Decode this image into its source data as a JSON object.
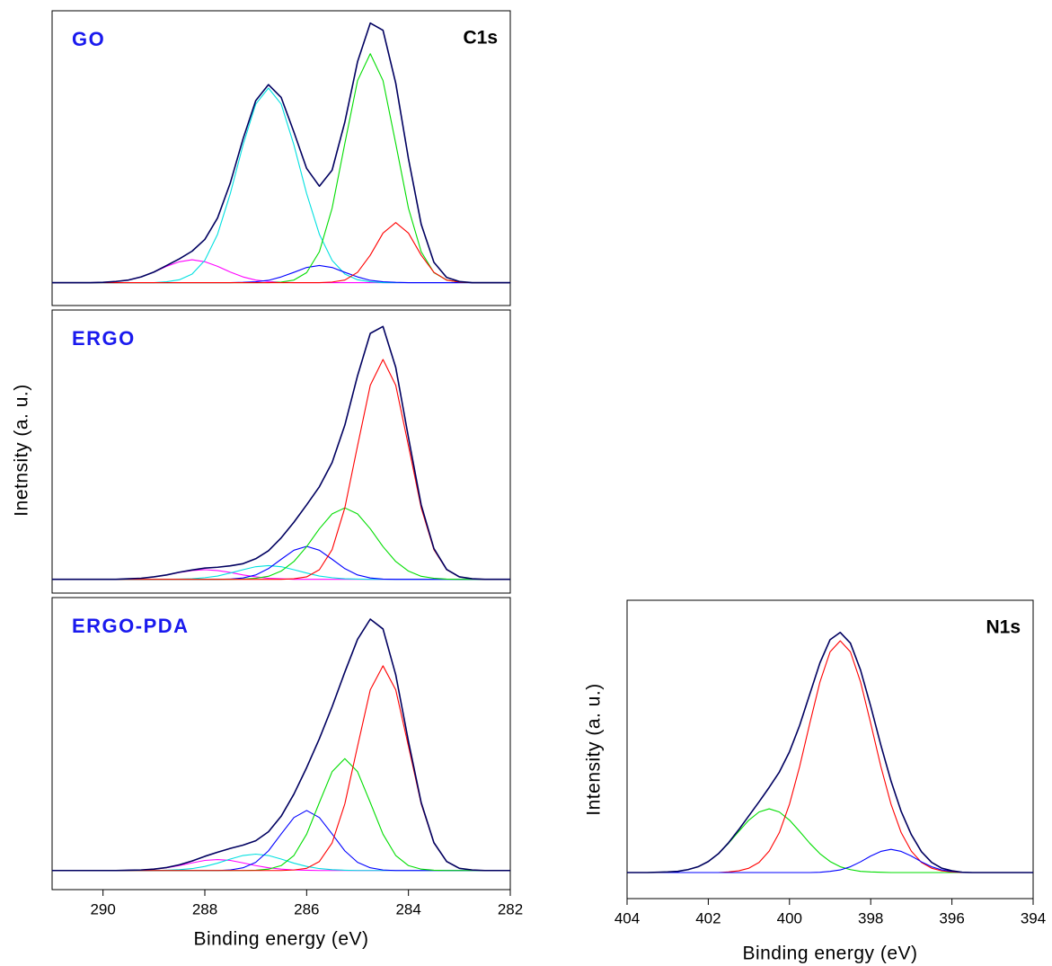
{
  "chart_data": [
    {
      "type": "line",
      "title": "GO",
      "annotation": "C1s",
      "x": [
        291,
        290.75,
        290.5,
        290.25,
        290,
        289.75,
        289.5,
        289.25,
        289,
        288.75,
        288.5,
        288.25,
        288,
        287.75,
        287.5,
        287.25,
        287,
        286.75,
        286.5,
        286.25,
        286,
        285.75,
        285.5,
        285.25,
        285,
        284.75,
        284.5,
        284.25,
        284,
        283.75,
        283.5,
        283.25,
        283,
        282.75,
        282.5,
        282.25,
        282
      ],
      "xlim": [
        291,
        282
      ],
      "ylim": [
        -8,
        95
      ],
      "series": [
        {
          "color": "#ff00ff",
          "values": [
            0,
            0,
            0,
            0,
            0.1,
            0.4,
            0.9,
            2,
            3.7,
            5.7,
            7.3,
            8,
            7.3,
            5.7,
            3.7,
            2,
            0.9,
            0.4,
            0.1,
            0,
            0,
            0,
            0,
            0,
            0,
            0,
            0,
            0,
            0,
            0,
            0,
            0,
            0,
            0,
            0,
            0,
            0
          ]
        },
        {
          "color": "#00e0e0",
          "values": [
            0,
            0,
            0,
            0,
            0,
            0,
            0,
            0,
            0,
            0.3,
            1,
            3,
            7.8,
            16.9,
            31.1,
            48.1,
            62.4,
            68,
            62.4,
            48.1,
            31.1,
            16.9,
            7.8,
            3,
            1,
            0.3,
            0,
            0,
            0,
            0,
            0,
            0,
            0,
            0,
            0,
            0,
            0
          ]
        },
        {
          "color": "#0000ff",
          "values": [
            0,
            0,
            0,
            0,
            0,
            0,
            0,
            0,
            0,
            0,
            0,
            0,
            0,
            0,
            0,
            0.1,
            0.3,
            0.8,
            2,
            3.6,
            5.3,
            6,
            5.3,
            3.6,
            2,
            0.8,
            0.3,
            0.1,
            0,
            0,
            0,
            0,
            0,
            0,
            0,
            0,
            0
          ]
        },
        {
          "color": "#00dd00",
          "values": [
            0,
            0,
            0,
            0,
            0,
            0,
            0,
            0,
            0,
            0,
            0,
            0,
            0,
            0,
            0,
            0,
            0,
            0,
            0.2,
            0.9,
            3.5,
            10.8,
            26,
            48.6,
            70.6,
            80,
            70.6,
            48.6,
            26,
            10.8,
            3.5,
            0.9,
            0.2,
            0,
            0,
            0,
            0
          ]
        },
        {
          "color": "#ff0000",
          "values": [
            0,
            0,
            0,
            0,
            0,
            0,
            0,
            0,
            0,
            0,
            0,
            0,
            0,
            0,
            0,
            0,
            0,
            0,
            0,
            0,
            0,
            0,
            0.2,
            0.9,
            3.6,
            9.6,
            17.3,
            21,
            17.3,
            9.6,
            3.6,
            0.9,
            0.2,
            0,
            0,
            0,
            0
          ]
        },
        {
          "color": "#000060",
          "values": [
            0,
            0,
            0,
            0,
            0.1,
            0.4,
            0.9,
            2,
            3.7,
            6,
            8.3,
            11,
            15.1,
            22.6,
            34.8,
            50.2,
            63.6,
            69.2,
            64.7,
            52.6,
            39.9,
            33.7,
            39.3,
            56.1,
            77.2,
            90.7,
            88.2,
            69.7,
            43.3,
            20.4,
            7.1,
            1.8,
            0.4,
            0,
            0,
            0,
            0
          ]
        }
      ]
    },
    {
      "type": "line",
      "title": "ERGO",
      "ylabel": "Inetnsity (a. u.)",
      "x": [
        291,
        290.75,
        290.5,
        290.25,
        290,
        289.75,
        289.5,
        289.25,
        289,
        288.75,
        288.5,
        288.25,
        288,
        287.75,
        287.5,
        287.25,
        287,
        286.75,
        286.5,
        286.25,
        286,
        285.75,
        285.5,
        285.25,
        285,
        284.75,
        284.5,
        284.25,
        284,
        283.75,
        283.5,
        283.25,
        283,
        282.75,
        282.5,
        282.25,
        282
      ],
      "xlim": [
        291,
        282
      ],
      "ylim": [
        -5,
        98
      ],
      "series": [
        {
          "color": "#ff00ff",
          "values": [
            0,
            0,
            0,
            0,
            0,
            0,
            0.2,
            0.4,
            0.9,
            1.6,
            2.5,
            3.2,
            3.5,
            3.2,
            2.5,
            1.6,
            0.9,
            0.4,
            0.2,
            0,
            0,
            0,
            0,
            0,
            0,
            0,
            0,
            0,
            0,
            0,
            0,
            0,
            0,
            0,
            0,
            0,
            0
          ]
        },
        {
          "color": "#00e0e0",
          "values": [
            0,
            0,
            0,
            0,
            0,
            0,
            0,
            0,
            0,
            0,
            0.1,
            0.2,
            0.6,
            1.2,
            2.3,
            3.5,
            4.6,
            5,
            4.6,
            3.5,
            2.3,
            1.2,
            0.6,
            0.2,
            0.1,
            0,
            0,
            0,
            0,
            0,
            0,
            0,
            0,
            0,
            0,
            0,
            0
          ]
        },
        {
          "color": "#0000ff",
          "values": [
            0,
            0,
            0,
            0,
            0,
            0,
            0,
            0,
            0,
            0,
            0,
            0,
            0,
            0,
            0.1,
            0.5,
            1.6,
            3.9,
            7.3,
            10.6,
            12,
            10.6,
            7.3,
            3.9,
            1.6,
            0.5,
            0.1,
            0,
            0,
            0,
            0,
            0,
            0,
            0,
            0,
            0,
            0
          ]
        },
        {
          "color": "#00dd00",
          "values": [
            0,
            0,
            0,
            0,
            0,
            0,
            0,
            0,
            0,
            0,
            0,
            0,
            0,
            0,
            0,
            0.1,
            0.4,
            1.1,
            3,
            6.5,
            11.9,
            18.4,
            23.8,
            26,
            23.8,
            18.4,
            11.9,
            6.5,
            3,
            1.1,
            0.4,
            0.1,
            0,
            0,
            0,
            0,
            0
          ]
        },
        {
          "color": "#ff0000",
          "values": [
            0,
            0,
            0,
            0,
            0,
            0,
            0,
            0,
            0,
            0,
            0,
            0,
            0,
            0,
            0,
            0,
            0,
            0,
            0,
            0.2,
            0.9,
            3.5,
            10.8,
            26,
            48.6,
            70.6,
            80,
            70.6,
            48.6,
            26,
            10.8,
            3.5,
            0.9,
            0.2,
            0,
            0,
            0
          ]
        },
        {
          "color": "#000060",
          "values": [
            0,
            0,
            0,
            0,
            0,
            0,
            0.2,
            0.4,
            0.9,
            1.6,
            2.6,
            3.4,
            4.1,
            4.4,
            4.9,
            5.7,
            7.5,
            10.4,
            15.1,
            20.8,
            27.1,
            33.7,
            42.5,
            56.1,
            74.1,
            89.5,
            92,
            77.1,
            51.6,
            27.1,
            11.2,
            3.6,
            0.9,
            0.2,
            0,
            0,
            0
          ]
        }
      ]
    },
    {
      "type": "line",
      "title": "ERGO-PDA",
      "xlabel": "Binding energy (eV)",
      "x": [
        291,
        290.75,
        290.5,
        290.25,
        290,
        289.75,
        289.5,
        289.25,
        289,
        288.75,
        288.5,
        288.25,
        288,
        287.75,
        287.5,
        287.25,
        287,
        286.75,
        286.5,
        286.25,
        286,
        285.75,
        285.5,
        285.25,
        285,
        284.75,
        284.5,
        284.25,
        284,
        283.75,
        283.5,
        283.25,
        283,
        282.75,
        282.5,
        282.25,
        282
      ],
      "xlim": [
        291,
        282
      ],
      "xticks": [
        290,
        288,
        286,
        284,
        282
      ],
      "ylim": [
        -7,
        100
      ],
      "series": [
        {
          "color": "#ff00ff",
          "values": [
            0,
            0,
            0,
            0,
            0,
            0,
            0.1,
            0.2,
            0.5,
            1,
            1.8,
            2.8,
            3.7,
            4,
            3.7,
            2.8,
            1.8,
            1,
            0.5,
            0.2,
            0.1,
            0,
            0,
            0,
            0,
            0,
            0,
            0,
            0,
            0,
            0,
            0,
            0,
            0,
            0,
            0,
            0
          ]
        },
        {
          "color": "#00e0e0",
          "values": [
            0,
            0,
            0,
            0,
            0,
            0,
            0,
            0,
            0,
            0.1,
            0.3,
            0.7,
            1.5,
            2.7,
            4.2,
            5.5,
            6,
            5.5,
            4.2,
            2.7,
            1.5,
            0.7,
            0.3,
            0.1,
            0,
            0,
            0,
            0,
            0,
            0,
            0,
            0,
            0,
            0,
            0,
            0,
            0
          ]
        },
        {
          "color": "#0000ff",
          "values": [
            0,
            0,
            0,
            0,
            0,
            0,
            0,
            0,
            0,
            0,
            0,
            0,
            0,
            0,
            0.2,
            1,
            3,
            7.2,
            13.4,
            19.4,
            22,
            19.4,
            13.4,
            7.2,
            3,
            1,
            0.2,
            0,
            0,
            0,
            0,
            0,
            0,
            0,
            0,
            0,
            0
          ]
        },
        {
          "color": "#00dd00",
          "values": [
            0,
            0,
            0,
            0,
            0,
            0,
            0,
            0,
            0,
            0,
            0,
            0,
            0,
            0,
            0,
            0,
            0.1,
            0.5,
            1.8,
            5.5,
            13.3,
            24.9,
            36.2,
            41,
            36.2,
            24.9,
            13.3,
            5.5,
            1.8,
            0.5,
            0.1,
            0,
            0,
            0,
            0,
            0,
            0
          ]
        },
        {
          "color": "#ff0000",
          "values": [
            0,
            0,
            0,
            0,
            0,
            0,
            0,
            0,
            0,
            0,
            0,
            0,
            0,
            0,
            0,
            0,
            0,
            0,
            0,
            0.2,
            0.8,
            3.3,
            10.1,
            24.4,
            45.5,
            66.2,
            75,
            66.2,
            45.5,
            24.4,
            10.1,
            3.3,
            0.8,
            0.2,
            0,
            0,
            0
          ]
        },
        {
          "color": "#000060",
          "values": [
            0,
            0,
            0,
            0,
            0,
            0,
            0.1,
            0.2,
            0.5,
            1.1,
            2.1,
            3.5,
            5.2,
            6.7,
            8.1,
            9.3,
            10.9,
            14.2,
            19.9,
            28,
            37.7,
            48.3,
            60,
            72.7,
            84.7,
            92.1,
            88.5,
            71.7,
            47.3,
            24.9,
            10.2,
            3.3,
            0.8,
            0.2,
            0,
            0,
            0
          ]
        }
      ]
    },
    {
      "type": "line",
      "annotation": "N1s",
      "xlabel": "Binding energy (eV)",
      "ylabel": "Intensity (a. u.)",
      "x": [
        404,
        403.75,
        403.5,
        403.25,
        403,
        402.75,
        402.5,
        402.25,
        402,
        401.75,
        401.5,
        401.25,
        401,
        400.75,
        400.5,
        400.25,
        400,
        399.75,
        399.5,
        399.25,
        399,
        398.75,
        398.5,
        398.25,
        398,
        397.75,
        397.5,
        397.25,
        397,
        396.75,
        396.5,
        396.25,
        396,
        395.75,
        395.5,
        395.25,
        395,
        394.75,
        394.5,
        394.25,
        394
      ],
      "xlim": [
        404,
        394
      ],
      "xticks": [
        404,
        402,
        400,
        398,
        396,
        394
      ],
      "ylim": [
        -9,
        94
      ],
      "series": [
        {
          "color": "#00dd00",
          "values": [
            0,
            0,
            0,
            0.1,
            0.2,
            0.4,
            1,
            2,
            3.8,
            6.5,
            10.1,
            14.2,
            18.1,
            20.9,
            22,
            20.9,
            18.1,
            14.2,
            10.1,
            6.5,
            3.8,
            2,
            1,
            0.4,
            0.2,
            0.1,
            0,
            0,
            0,
            0,
            0,
            0,
            0,
            0,
            0,
            0,
            0,
            0,
            0,
            0,
            0
          ]
        },
        {
          "color": "#ff0000",
          "values": [
            0,
            0,
            0,
            0,
            0,
            0,
            0,
            0,
            0,
            0,
            0.2,
            0.6,
            1.5,
            3.5,
            7.4,
            13.8,
            23.6,
            36.6,
            51.5,
            65.8,
            76.2,
            80,
            76.2,
            65.8,
            51.5,
            36.6,
            23.6,
            13.8,
            7.4,
            3.5,
            1.5,
            0.6,
            0.2,
            0,
            0,
            0,
            0,
            0,
            0,
            0,
            0
          ]
        },
        {
          "color": "#0000ff",
          "values": [
            0,
            0,
            0,
            0,
            0,
            0,
            0,
            0,
            0,
            0,
            0,
            0,
            0,
            0,
            0,
            0,
            0,
            0,
            0,
            0.1,
            0.4,
            0.9,
            2,
            3.7,
            5.7,
            7.3,
            8,
            7.3,
            5.7,
            3.7,
            2,
            0.9,
            0.4,
            0.1,
            0,
            0,
            0,
            0,
            0,
            0,
            0
          ]
        },
        {
          "color": "#000060",
          "values": [
            0,
            0,
            0,
            0.1,
            0.2,
            0.4,
            1,
            2,
            3.8,
            6.5,
            10.3,
            14.8,
            19.6,
            24.4,
            29.4,
            34.7,
            41.7,
            50.8,
            61.6,
            72.4,
            80.4,
            82.9,
            79.2,
            69.9,
            57.4,
            44,
            31.6,
            21.1,
            13.1,
            7.2,
            3.5,
            1.5,
            0.6,
            0.1,
            0,
            0,
            0,
            0,
            0,
            0,
            0
          ]
        }
      ]
    }
  ]
}
